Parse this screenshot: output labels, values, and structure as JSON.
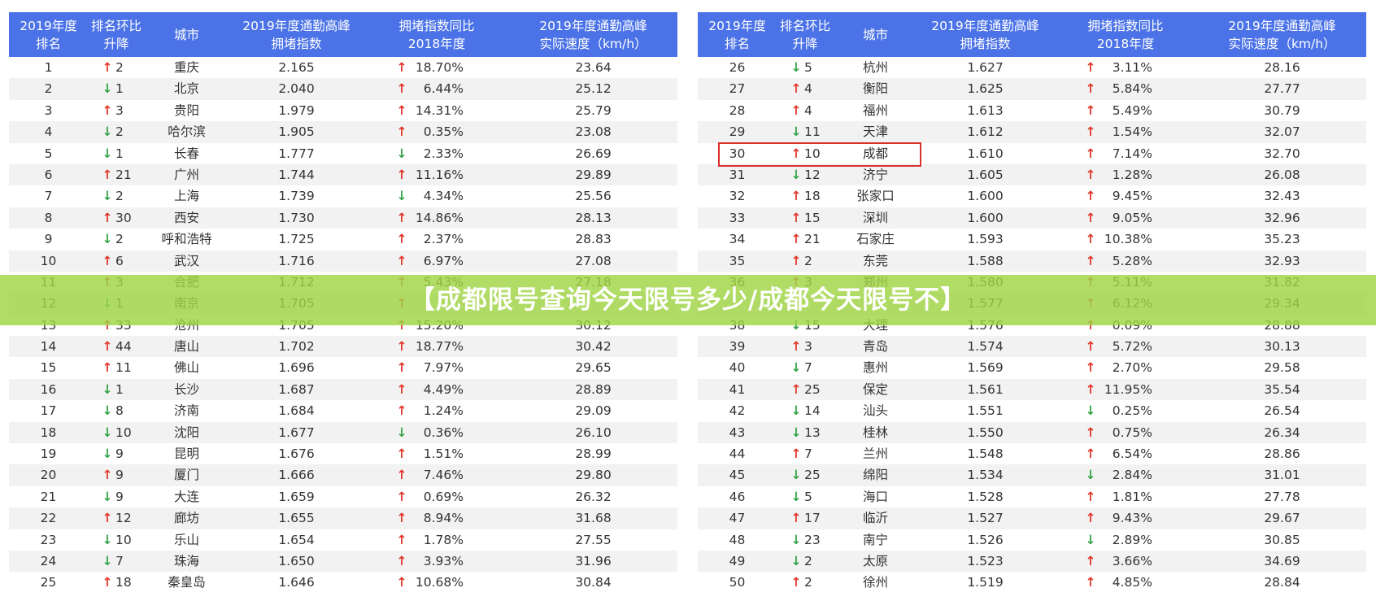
{
  "banner": "【成都限号查询今天限号多少/成都今天限号不】",
  "arrow_colors": {
    "↑": "#e2372b",
    "↓": "#34a346"
  },
  "tables": [
    {
      "headers": [
        [
          "2019年度",
          "排名"
        ],
        [
          "排名环比",
          "升降"
        ],
        [
          "城市"
        ],
        [
          "2019年度通勤高峰",
          "拥堵指数"
        ],
        [
          "拥堵指数同比",
          "2018年度"
        ],
        [
          "2019年度通勤高峰",
          "实际速度（km/h）"
        ]
      ],
      "rows": [
        [
          "1",
          "↑",
          "2",
          "重庆",
          "2.165",
          "↑",
          "18.70%",
          "23.64"
        ],
        [
          "2",
          "↓",
          "1",
          "北京",
          "2.040",
          "↑",
          "6.44%",
          "25.12"
        ],
        [
          "3",
          "↑",
          "3",
          "贵阳",
          "1.979",
          "↑",
          "14.31%",
          "25.79"
        ],
        [
          "4",
          "↓",
          "2",
          "哈尔滨",
          "1.905",
          "↑",
          "0.35%",
          "23.08"
        ],
        [
          "5",
          "↓",
          "1",
          "长春",
          "1.777",
          "↓",
          "2.33%",
          "26.69"
        ],
        [
          "6",
          "↑",
          "21",
          "广州",
          "1.744",
          "↑",
          "11.16%",
          "29.89"
        ],
        [
          "7",
          "↓",
          "2",
          "上海",
          "1.739",
          "↓",
          "4.34%",
          "25.56"
        ],
        [
          "8",
          "↑",
          "30",
          "西安",
          "1.730",
          "↑",
          "14.86%",
          "28.13"
        ],
        [
          "9",
          "↓",
          "2",
          "呼和浩特",
          "1.725",
          "↑",
          "2.37%",
          "28.83"
        ],
        [
          "10",
          "↑",
          "6",
          "武汉",
          "1.716",
          "↑",
          "6.97%",
          "27.08"
        ],
        [
          "11",
          "↑",
          "3",
          "合肥",
          "1.712",
          "↑",
          "5.43%",
          "27.18"
        ],
        [
          "12",
          "↓",
          "1",
          "南京",
          "1.705",
          "↑",
          null,
          null
        ],
        [
          "13",
          "↑",
          "33",
          "沧州",
          "1.705",
          "↑",
          "15.20%",
          "30.12"
        ],
        [
          "14",
          "↑",
          "44",
          "唐山",
          "1.702",
          "↑",
          "18.77%",
          "30.42"
        ],
        [
          "15",
          "↑",
          "11",
          "佛山",
          "1.696",
          "↑",
          "7.97%",
          "29.65"
        ],
        [
          "16",
          "↓",
          "1",
          "长沙",
          "1.687",
          "↑",
          "4.49%",
          "28.89"
        ],
        [
          "17",
          "↓",
          "8",
          "济南",
          "1.684",
          "↑",
          "1.24%",
          "29.09"
        ],
        [
          "18",
          "↓",
          "10",
          "沈阳",
          "1.677",
          "↓",
          "0.36%",
          "26.10"
        ],
        [
          "19",
          "↓",
          "9",
          "昆明",
          "1.676",
          "↑",
          "1.51%",
          "28.99"
        ],
        [
          "20",
          "↑",
          "9",
          "厦门",
          "1.666",
          "↑",
          "7.46%",
          "29.80"
        ],
        [
          "21",
          "↓",
          "9",
          "大连",
          "1.659",
          "↑",
          "0.69%",
          "26.32"
        ],
        [
          "22",
          "↑",
          "12",
          "廊坊",
          "1.655",
          "↑",
          "8.94%",
          "31.68"
        ],
        [
          "23",
          "↓",
          "10",
          "乐山",
          "1.654",
          "↑",
          "1.78%",
          "27.55"
        ],
        [
          "24",
          "↓",
          "7",
          "珠海",
          "1.650",
          "↑",
          "3.93%",
          "31.96"
        ],
        [
          "25",
          "↑",
          "18",
          "秦皇岛",
          "1.646",
          "↑",
          "10.68%",
          "30.84"
        ]
      ]
    },
    {
      "headers": [
        [
          "2019年度",
          "排名"
        ],
        [
          "排名环比",
          "升降"
        ],
        [
          "城市"
        ],
        [
          "2019年度通勤高峰",
          "拥堵指数"
        ],
        [
          "拥堵指数同比",
          "2018年度"
        ],
        [
          "2019年度通勤高峰",
          "实际速度（km/h）"
        ]
      ],
      "rows": [
        [
          "26",
          "↓",
          "5",
          "杭州",
          "1.627",
          "↑",
          "3.11%",
          "28.16"
        ],
        [
          "27",
          "↑",
          "4",
          "衡阳",
          "1.625",
          "↑",
          "5.84%",
          "27.77"
        ],
        [
          "28",
          "↑",
          "4",
          "福州",
          "1.613",
          "↑",
          "5.49%",
          "30.79"
        ],
        [
          "29",
          "↓",
          "11",
          "天津",
          "1.612",
          "↑",
          "1.54%",
          "32.07"
        ],
        [
          "30",
          "↑",
          "10",
          "成都",
          "1.610",
          "↑",
          "7.14%",
          "32.70"
        ],
        [
          "31",
          "↓",
          "12",
          "济宁",
          "1.605",
          "↑",
          "1.28%",
          "26.08"
        ],
        [
          "32",
          "↑",
          "18",
          "张家口",
          "1.600",
          "↑",
          "9.45%",
          "32.43"
        ],
        [
          "33",
          "↑",
          "15",
          "深圳",
          "1.600",
          "↑",
          "9.05%",
          "32.96"
        ],
        [
          "34",
          "↑",
          "21",
          "石家庄",
          "1.593",
          "↑",
          "10.38%",
          "35.23"
        ],
        [
          "35",
          "↑",
          "2",
          "东莞",
          "1.588",
          "↑",
          "5.28%",
          "32.93"
        ],
        [
          "36",
          "↑",
          "3",
          "郑州",
          "1.580",
          "↑",
          "5.11%",
          "31.82"
        ],
        [
          null,
          null,
          null,
          null,
          "1.577",
          "↑",
          "6.12%",
          "29.34"
        ],
        [
          "38",
          "↓",
          "15",
          "大理",
          "1.576",
          "↑",
          "0.09%",
          "28.88"
        ],
        [
          "39",
          "↑",
          "3",
          "青岛",
          "1.574",
          "↑",
          "5.72%",
          "30.13"
        ],
        [
          "40",
          "↓",
          "7",
          "惠州",
          "1.569",
          "↑",
          "2.70%",
          "29.58"
        ],
        [
          "41",
          "↑",
          "25",
          "保定",
          "1.561",
          "↑",
          "11.95%",
          "35.54"
        ],
        [
          "42",
          "↓",
          "14",
          "汕头",
          "1.551",
          "↓",
          "0.25%",
          "26.54"
        ],
        [
          "43",
          "↓",
          "13",
          "桂林",
          "1.550",
          "↑",
          "0.75%",
          "26.34"
        ],
        [
          "44",
          "↑",
          "7",
          "兰州",
          "1.548",
          "↑",
          "6.54%",
          "28.86"
        ],
        [
          "45",
          "↓",
          "25",
          "绵阳",
          "1.534",
          "↓",
          "2.84%",
          "31.01"
        ],
        [
          "46",
          "↓",
          "5",
          "海口",
          "1.528",
          "↑",
          "1.81%",
          "27.78"
        ],
        [
          "47",
          "↑",
          "17",
          "临沂",
          "1.527",
          "↑",
          "9.43%",
          "29.67"
        ],
        [
          "48",
          "↓",
          "23",
          "南宁",
          "1.526",
          "↓",
          "2.89%",
          "30.85"
        ],
        [
          "49",
          "↓",
          "2",
          "太原",
          "1.523",
          "↑",
          "3.66%",
          "34.69"
        ],
        [
          "50",
          "↑",
          "2",
          "徐州",
          "1.519",
          "↑",
          "4.85%",
          "28.84"
        ]
      ]
    }
  ]
}
